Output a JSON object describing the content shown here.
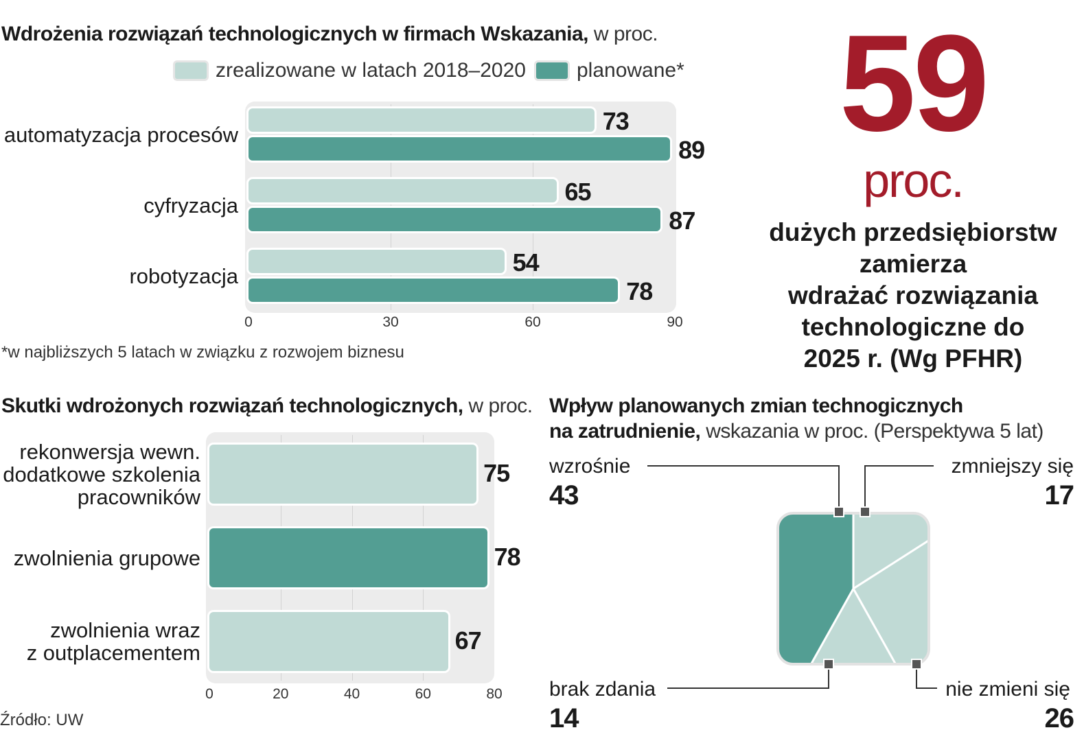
{
  "chart1": {
    "title_bold": "Wdrożenia  rozwiązań technologicznych w firmach Wskazania,",
    "title_light": " w proc.",
    "legend": [
      "zrealizowane w latach 2018–2020",
      "planowane*"
    ],
    "footnote": "*w najbliższych 5 latach w związku z rozwojem biznesu"
  },
  "callout": {
    "number": "59",
    "unit": "proc.",
    "text_lines": [
      "dużych przedsiębiorstw",
      "zamierza",
      "wdrażać rozwiązania",
      "technologiczne do",
      "2025 r. (Wg PFHR)"
    ]
  },
  "chart2": {
    "title_bold": "Skutki wdrożonych rozwiązań technologicznych,",
    "title_light": " w proc."
  },
  "chart3": {
    "title_bold_1": "Wpływ planowanych zmian technogicznych",
    "title_bold_2": "na zatrudnienie,",
    "title_light": " wskazania w proc. (Perspektywa 5 lat)"
  },
  "source": "Źródło: UW",
  "colors": {
    "light": "#c0dad5",
    "dark": "#539e93",
    "accent": "#a31c2a"
  },
  "chart_data": [
    {
      "type": "bar",
      "orientation": "horizontal",
      "title": "Wdrożenia  rozwiązań technologicznych w firmach Wskazania, w proc.",
      "categories": [
        "automatyzacja procesów",
        "cyfryzacja",
        "robotyzacja"
      ],
      "series": [
        {
          "name": "zrealizowane w latach 2018–2020",
          "values": [
            73,
            65,
            54
          ]
        },
        {
          "name": "planowane*",
          "values": [
            89,
            87,
            78
          ]
        }
      ],
      "xlim": [
        0,
        90
      ],
      "xticks": [
        0,
        30,
        60,
        90
      ],
      "grid": true,
      "legend": "top"
    },
    {
      "type": "bar",
      "orientation": "horizontal",
      "title": "Skutki wdrożonych rozwiązań technologicznych, w proc.",
      "categories": [
        "rekonwersja wewn. dodatkowe szkolenia pracowników",
        "zwolnienia grupowe",
        "zwolnienia wraz z outplacementem"
      ],
      "category_lines": [
        [
          "rekonwersja wewn.",
          "dodatkowe szkolenia",
          "pracowników"
        ],
        [
          "zwolnienia grupowe"
        ],
        [
          "zwolnienia wraz",
          "z outplacementem"
        ]
      ],
      "values": [
        75,
        78,
        67
      ],
      "xlim": [
        0,
        80
      ],
      "xticks": [
        0,
        20,
        40,
        60,
        80
      ],
      "grid": true
    },
    {
      "type": "pie",
      "title": "Wpływ planowanych zmian technogicznych na zatrudnienie, wskazania w proc. (Perspektywa 5 lat)",
      "labels": [
        "wzrośnie",
        "zmniejszy się",
        "nie zmieni się",
        "brak zdania"
      ],
      "values": [
        43,
        17,
        26,
        14
      ]
    }
  ]
}
